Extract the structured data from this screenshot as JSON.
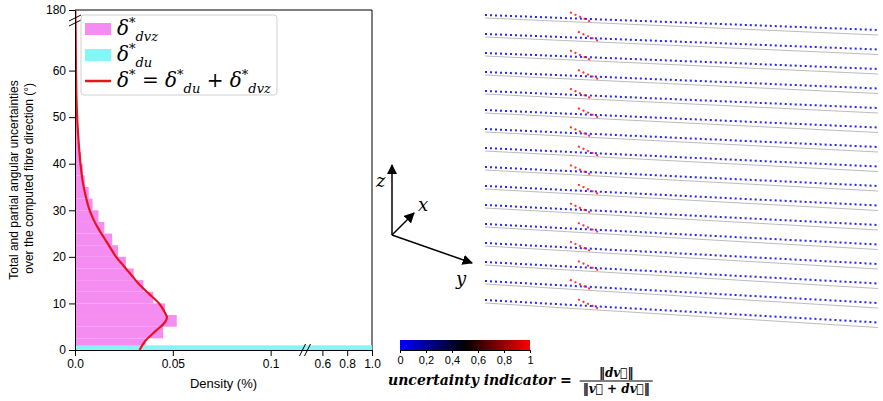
{
  "chart_data": [
    {
      "type": "histogram",
      "orientation": "horizontal",
      "xlabel": "Density (%)",
      "ylabel": "Total and partial angular uncertainties over the computed fibre direction (°)",
      "xlim": [
        0,
        1.0
      ],
      "xbreak": [
        0.115,
        0.5
      ],
      "xticks": [
        {
          "value": 0,
          "label": "0.0"
        },
        0.05,
        0.1,
        0.6,
        0.8,
        {
          "value": 1.0,
          "label": "1.0"
        }
      ],
      "ylim": [
        0,
        180
      ],
      "ybreak": [
        70,
        178
      ],
      "yticks": [
        0,
        10,
        20,
        30,
        40,
        50,
        60,
        180
      ],
      "legend": "upper left",
      "series": [
        {
          "name": "δ*dvz",
          "color": "#f48cf2",
          "bins": [
            0,
            2.5,
            5,
            7.5,
            10,
            12.5,
            15,
            17.5,
            20,
            22.5,
            25,
            27.5,
            30,
            32.5,
            35,
            37.5,
            40,
            42.5,
            45,
            47.5,
            50,
            52.5,
            55,
            57.5,
            60,
            62.5
          ],
          "values": [
            0.036,
            0.045,
            0.052,
            0.046,
            0.04,
            0.035,
            0.03,
            0.026,
            0.022,
            0.019,
            0.015,
            0.012,
            0.009,
            0.007,
            0.005,
            0.004,
            0.003,
            0.002,
            0.0015,
            0.0012,
            0.001,
            0.0008,
            0.0006,
            0.0005,
            0.0004
          ]
        },
        {
          "name": "δ*du",
          "color": "#86f5f5",
          "bins": [
            0,
            1
          ],
          "values": [
            1.0
          ]
        },
        {
          "name": "δ* = δ*du + δ*dvz",
          "type": "line",
          "color": "#e8141c",
          "values": [
            0.033,
            0.036,
            0.041,
            0.046,
            0.047,
            0.046,
            0.043,
            0.038,
            0.033,
            0.029,
            0.025,
            0.021,
            0.018,
            0.015,
            0.012,
            0.0095,
            0.0075,
            0.0055,
            0.004,
            0.0028,
            0.0018,
            0.0011,
            0.0007,
            0.0005,
            0.0004,
            0.0003,
            0.0002,
            0.0002
          ],
          "y": [
            0,
            2,
            4,
            6,
            7,
            8,
            10,
            12,
            14,
            16,
            18,
            20,
            22,
            24,
            26,
            28,
            30,
            33,
            36,
            40,
            45,
            50,
            55,
            60,
            65,
            70,
            178,
            180
          ]
        }
      ]
    },
    {
      "type": "3d-scatter",
      "xlabel": "x",
      "ylabel": "y",
      "zlabel": "z",
      "colorbar": {
        "range": [
          0,
          1
        ],
        "ticks": [
          0,
          {
            "value": 0.2,
            "label": "0,2"
          },
          {
            "value": 0.4,
            "label": "0,4"
          },
          {
            "value": 0.6,
            "label": "0,6"
          },
          {
            "value": 0.8,
            "label": "0,8"
          },
          1
        ],
        "colors": [
          "#0000ff",
          "#000000",
          "#ff0000"
        ],
        "label": "uncertainty indicator =",
        "numerator": "‖dv⃗‖",
        "denominator": "‖v⃗ + dv⃗‖"
      }
    }
  ]
}
